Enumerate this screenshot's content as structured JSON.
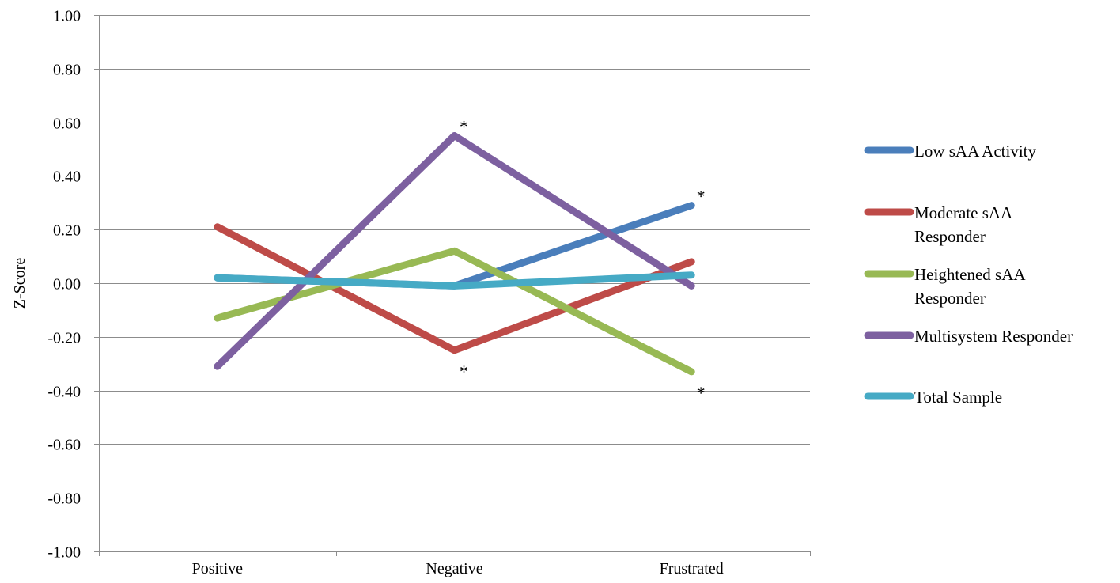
{
  "chart_data": {
    "type": "line",
    "title": "",
    "xlabel": "",
    "ylabel": "Z-Score",
    "ylim": [
      -1.0,
      1.0
    ],
    "y_tick_step": 0.2,
    "y_tick_labels": [
      "1.00",
      "0.80",
      "0.60",
      "0.40",
      "0.20",
      "0.00",
      "-0.20",
      "-0.40",
      "-0.60",
      "-0.80",
      "-1.00"
    ],
    "grid": true,
    "legend_position": "right",
    "categories": [
      "Positive",
      "Negative",
      "Frustrated"
    ],
    "series": [
      {
        "name": "Low sAA Activity",
        "legend_lines": [
          "Low sAA Activity"
        ],
        "color": "#4a7ebb",
        "values": [
          0.02,
          -0.01,
          0.29
        ]
      },
      {
        "name": "Moderate sAA Responder",
        "legend_lines": [
          "Moderate sAA",
          "Responder"
        ],
        "color": "#be4b48",
        "values": [
          0.21,
          -0.25,
          0.08
        ]
      },
      {
        "name": "Heightened sAA Responder",
        "legend_lines": [
          "Heightened sAA",
          "Responder"
        ],
        "color": "#98b954",
        "values": [
          -0.13,
          0.12,
          -0.33
        ]
      },
      {
        "name": "Multisystem Responder",
        "legend_lines": [
          "Multisystem Responder"
        ],
        "color": "#7d60a0",
        "values": [
          -0.31,
          0.55,
          -0.01
        ]
      },
      {
        "name": "Total Sample",
        "legend_lines": [
          "Total Sample"
        ],
        "color": "#46aac5",
        "values": [
          0.02,
          -0.01,
          0.03
        ]
      }
    ],
    "annotations": [
      {
        "text": "*",
        "category": "Negative",
        "series": "Multisystem Responder",
        "placement": "above"
      },
      {
        "text": "*",
        "category": "Negative",
        "series": "Moderate sAA Responder",
        "placement": "below"
      },
      {
        "text": "*",
        "category": "Frustrated",
        "series": "Low sAA Activity",
        "placement": "above"
      },
      {
        "text": "*",
        "category": "Frustrated",
        "series": "Heightened sAA Responder",
        "placement": "below"
      }
    ]
  }
}
